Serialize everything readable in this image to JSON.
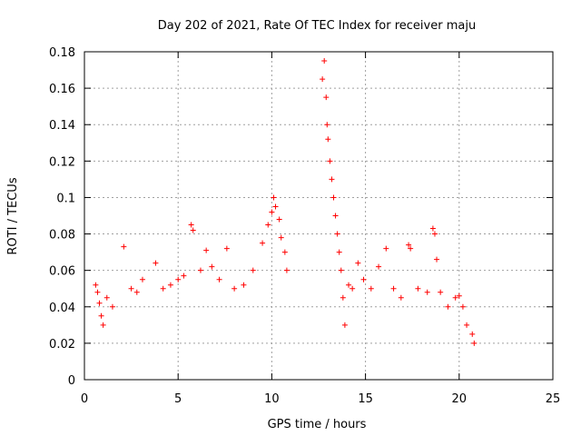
{
  "chart_data": {
    "type": "scatter",
    "title": "Day 202 of 2021, Rate Of TEC Index for receiver maju",
    "xlabel": "GPS time / hours",
    "ylabel": "ROTI / TECUs",
    "xlim": [
      0,
      25
    ],
    "ylim": [
      0,
      0.18
    ],
    "xticks": [
      0,
      5,
      10,
      15,
      20,
      25
    ],
    "xtick_labels": [
      "0",
      "5",
      "10",
      "15",
      "20",
      "25"
    ],
    "yticks": [
      0,
      0.02,
      0.04,
      0.06,
      0.08,
      0.1,
      0.12,
      0.14,
      0.16,
      0.18
    ],
    "ytick_labels": [
      "0",
      "0.02",
      "0.04",
      "0.06",
      "0.08",
      "0.1",
      "0.12",
      "0.14",
      "0.16",
      "0.18"
    ],
    "grid": true,
    "marker": "+",
    "marker_color": "#ff0000",
    "series": [
      {
        "x": [
          0.6,
          0.7,
          0.8,
          0.9,
          1.0,
          1.2,
          1.5,
          2.1,
          2.5,
          2.8,
          3.1,
          3.8,
          4.2,
          4.6,
          5.0,
          5.3,
          5.7,
          5.8,
          6.2,
          6.5,
          6.8,
          7.2,
          7.6,
          8.0,
          8.5,
          9.0,
          9.5,
          9.8,
          10.0,
          10.1,
          10.2,
          10.4,
          10.5,
          10.7,
          10.8,
          12.7,
          12.8,
          12.9,
          12.95,
          13.0,
          13.1,
          13.2,
          13.3,
          13.4,
          13.5,
          13.6,
          13.7,
          13.8,
          13.9,
          14.1,
          14.3,
          14.6,
          14.9,
          15.3,
          15.7,
          16.1,
          16.5,
          16.9,
          17.3,
          17.4,
          17.8,
          18.3,
          18.6,
          18.7,
          18.8,
          19.0,
          19.4,
          19.8,
          20.0,
          20.2,
          20.4,
          20.7,
          20.8
        ],
        "y": [
          0.052,
          0.048,
          0.042,
          0.035,
          0.03,
          0.045,
          0.04,
          0.073,
          0.05,
          0.048,
          0.055,
          0.064,
          0.05,
          0.052,
          0.055,
          0.057,
          0.085,
          0.082,
          0.06,
          0.071,
          0.062,
          0.055,
          0.072,
          0.05,
          0.052,
          0.06,
          0.075,
          0.085,
          0.092,
          0.1,
          0.095,
          0.088,
          0.078,
          0.07,
          0.06,
          0.165,
          0.175,
          0.155,
          0.14,
          0.132,
          0.12,
          0.11,
          0.1,
          0.09,
          0.08,
          0.07,
          0.06,
          0.045,
          0.03,
          0.052,
          0.05,
          0.064,
          0.055,
          0.05,
          0.062,
          0.072,
          0.05,
          0.045,
          0.074,
          0.072,
          0.05,
          0.048,
          0.083,
          0.08,
          0.066,
          0.048,
          0.04,
          0.045,
          0.046,
          0.04,
          0.03,
          0.025,
          0.02
        ]
      }
    ]
  }
}
